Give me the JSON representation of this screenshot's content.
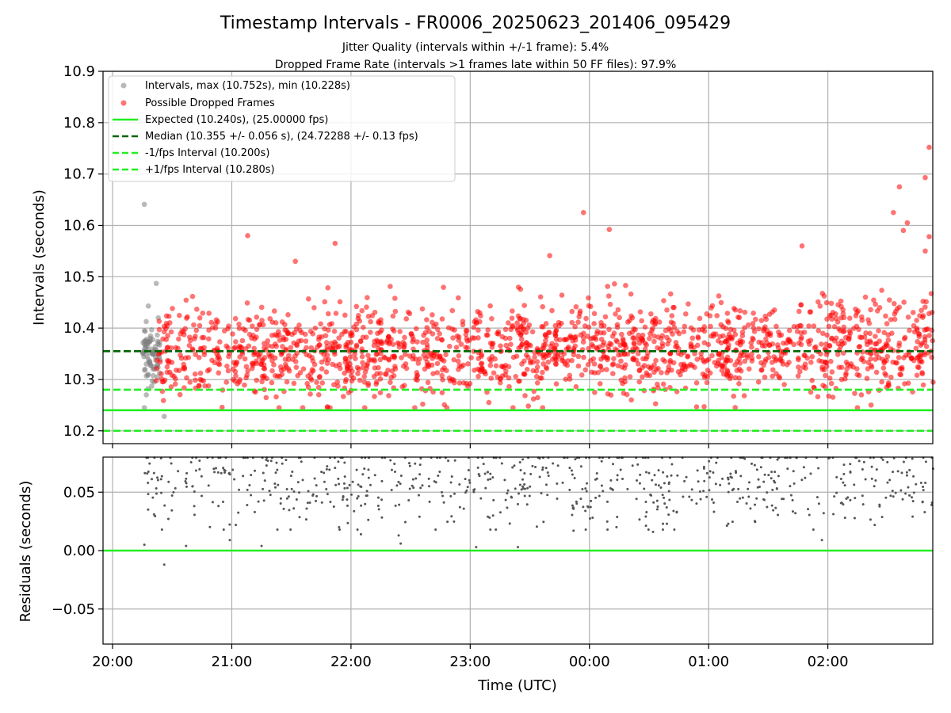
{
  "chart_data": [
    {
      "type": "scatter",
      "title": "Timestamp Intervals - FR0006_20250623_201406_095429",
      "subtitle": [
        "Jitter Quality (intervals within +/-1 frame): 5.4%",
        "Dropped Frame Rate (intervals >1 frames late within 50 FF files): 97.9%"
      ],
      "xlabel": "",
      "ylabel": "Intervals (seconds)",
      "ylim": [
        10.175,
        10.9
      ],
      "xlim_hours": [
        19.92,
        26.88
      ],
      "yticks": [
        "10.2",
        "10.3",
        "10.4",
        "10.5",
        "10.6",
        "10.7",
        "10.8",
        "10.9"
      ],
      "xticks_hours": [
        20,
        21,
        22,
        23,
        24,
        25,
        26
      ],
      "grid": true,
      "legend": {
        "placement": "top-left",
        "entries": [
          "Intervals, max (10.752s), min (10.228s)",
          "Possible Dropped Frames",
          "Expected (10.240s), (25.00000 fps)",
          "Median (10.355 +/- 0.056 s), (24.72288 +/- 0.13 fps)",
          "-1/fps Interval (10.200s)",
          "+1/fps Interval (10.280s)"
        ]
      },
      "series": [
        {
          "name": "Intervals, max (10.752s), min (10.228s)",
          "kind": "points",
          "color": "#808080",
          "time_range": [
            "20:15",
            "20:24"
          ],
          "points": [
            {
              "x": "20:16",
              "y": 10.641
            },
            {
              "x": "20:18",
              "y": 10.443
            },
            {
              "x": "20:22",
              "y": 10.487
            },
            {
              "x": "20:23",
              "y": 10.42
            },
            {
              "x": "20:16",
              "y": 10.395
            },
            {
              "x": "20:19",
              "y": 10.375
            },
            {
              "x": "20:20",
              "y": 10.35
            },
            {
              "x": "20:17",
              "y": 10.33
            },
            {
              "x": "20:18",
              "y": 10.31
            },
            {
              "x": "20:21",
              "y": 10.295
            },
            {
              "x": "20:17",
              "y": 10.27
            },
            {
              "x": "20:16",
              "y": 10.245
            },
            {
              "x": "20:26",
              "y": 10.228
            }
          ]
        },
        {
          "name": "Possible Dropped Frames",
          "kind": "points",
          "color": "#ff0000",
          "time_range": [
            "20:22",
            "26:53"
          ],
          "typical_range": [
            10.245,
            10.46
          ],
          "points": [
            {
              "x": "21:08",
              "y": 10.58
            },
            {
              "x": "21:32",
              "y": 10.53
            },
            {
              "x": "21:52",
              "y": 10.565
            },
            {
              "x": "23:40",
              "y": 10.541
            },
            {
              "x": "23:57",
              "y": 10.625
            },
            {
              "x": "00:10",
              "y": 10.592
            },
            {
              "x": "01:47",
              "y": 10.56
            },
            {
              "x": "02:33",
              "y": 10.625
            },
            {
              "x": "02:36",
              "y": 10.675
            },
            {
              "x": "02:38",
              "y": 10.59
            },
            {
              "x": "02:40",
              "y": 10.605
            },
            {
              "x": "02:49",
              "y": 10.693
            },
            {
              "x": "02:51",
              "y": 10.752
            },
            {
              "x": "02:51",
              "y": 10.578
            },
            {
              "x": "02:49",
              "y": 10.55
            }
          ]
        },
        {
          "name": "Expected (10.240s), (25.00000 fps)",
          "kind": "hline",
          "y": 10.24,
          "color": "#22ee22",
          "style": "solid"
        },
        {
          "name": "Median (10.355 +/- 0.056 s), (24.72288 +/- 0.13 fps)",
          "kind": "hline",
          "y": 10.355,
          "color": "#006400",
          "style": "dashed"
        },
        {
          "name": "-1/fps Interval (10.200s)",
          "kind": "hline",
          "y": 10.2,
          "color": "#22ee22",
          "style": "dashed"
        },
        {
          "name": "+1/fps Interval (10.280s)",
          "kind": "hline",
          "y": 10.28,
          "color": "#22ee22",
          "style": "dashed"
        }
      ]
    },
    {
      "type": "scatter",
      "xlabel": "Time (UTC)",
      "ylabel": "Residuals (seconds)",
      "ylim": [
        -0.08,
        0.08
      ],
      "yticks": [
        "0.05",
        "0.00",
        "−0.05"
      ],
      "xticks": [
        "20:00",
        "21:00",
        "22:00",
        "23:00",
        "00:00",
        "01:00",
        "02:00"
      ],
      "grid": true,
      "series": [
        {
          "name": "residuals",
          "kind": "points",
          "color": "#555555",
          "time_range": [
            "20:15",
            "26:53"
          ],
          "typical_range": [
            0.003,
            0.08
          ],
          "points": [
            {
              "x": "20:16",
              "y": 0.005
            },
            {
              "x": "20:26",
              "y": -0.012
            },
            {
              "x": "20:37",
              "y": 0.004
            },
            {
              "x": "20:59",
              "y": 0.009
            },
            {
              "x": "21:15",
              "y": 0.004
            },
            {
              "x": "21:54",
              "y": 0.02
            },
            {
              "x": "22:05",
              "y": 0.014
            },
            {
              "x": "22:24",
              "y": 0.013
            },
            {
              "x": "22:25",
              "y": 0.006
            },
            {
              "x": "23:03",
              "y": 0.003
            },
            {
              "x": "23:24",
              "y": 0.003
            },
            {
              "x": "23:52",
              "y": 0.017
            },
            {
              "x": "00:32",
              "y": 0.016
            },
            {
              "x": "00:37",
              "y": 0.023
            },
            {
              "x": "00:39",
              "y": 0.023
            },
            {
              "x": "01:57",
              "y": 0.009
            }
          ]
        },
        {
          "name": "zero",
          "kind": "hline",
          "y": 0.0,
          "color": "#22ee22",
          "style": "solid"
        }
      ]
    }
  ]
}
